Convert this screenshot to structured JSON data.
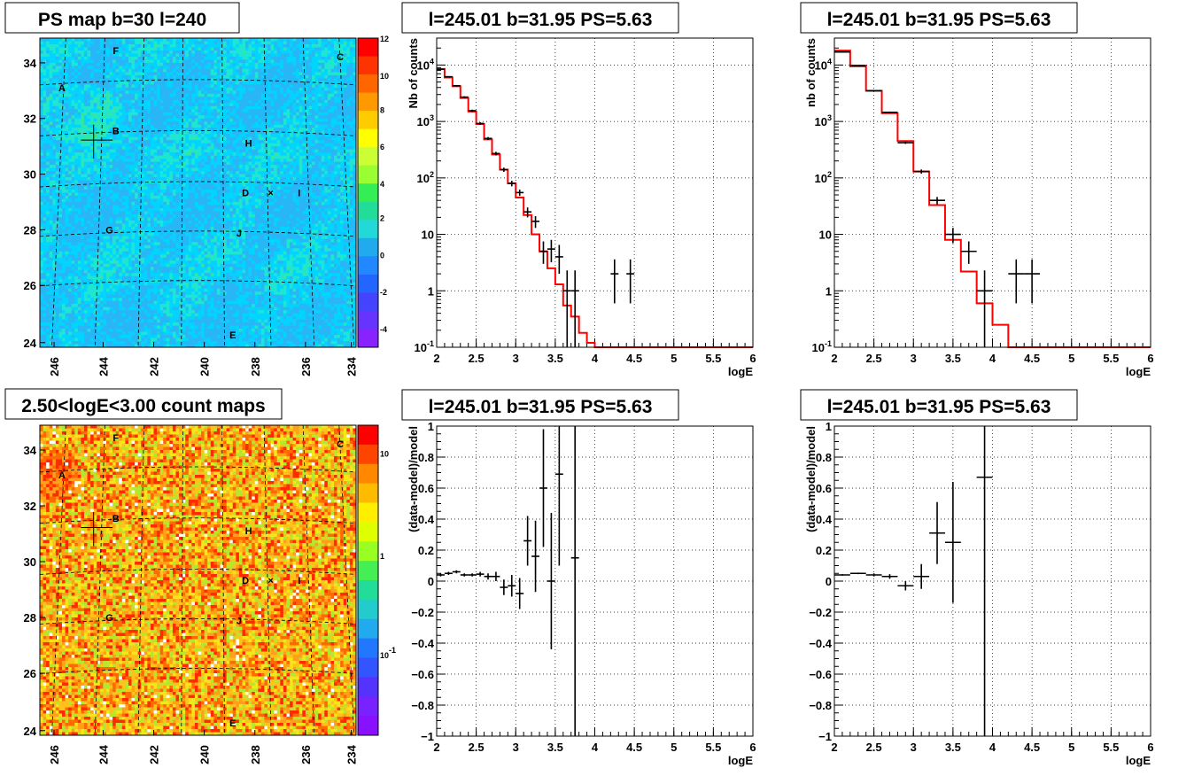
{
  "colors": {
    "model": "#ff0000",
    "data": "#000000",
    "grid": "#000000"
  },
  "maps": [
    {
      "title": "PS map b=30 l=240",
      "x_ticks": [
        "246",
        "244",
        "242",
        "240",
        "238",
        "236",
        "234"
      ],
      "y_ticks": [
        "24",
        "26",
        "28",
        "30",
        "32",
        "34"
      ],
      "z_ticks": [
        "12",
        "10",
        "8",
        "6",
        "4",
        "2",
        "0",
        "-2",
        "-4"
      ],
      "z_range": [
        -5,
        12
      ],
      "palette": "rainbow-violet-to-red, mostly cyan/green",
      "markers": [
        "A",
        "B",
        "C",
        "D",
        "E",
        "F",
        "G",
        "H",
        "I",
        "J"
      ]
    },
    {
      "title": "2.50<logE<3.00 count maps",
      "x_ticks": [
        "246",
        "244",
        "242",
        "240",
        "238",
        "236",
        "234"
      ],
      "y_ticks": [
        "24",
        "26",
        "28",
        "30",
        "32",
        "34"
      ],
      "z_ticks": [
        "10",
        "1",
        "10^{-1}"
      ],
      "z_scale": "log",
      "palette": "rainbow, mostly yellow/orange",
      "markers": [
        "A",
        "B",
        "C",
        "D",
        "E",
        "F",
        "G",
        "H",
        "I",
        "J"
      ]
    }
  ],
  "chart_data": [
    {
      "type": "line",
      "title": "l=245.01 b=31.95 PS=5.63",
      "xlabel": "logE",
      "ylabel": "Nb of counts",
      "yscale": "log",
      "xlim": [
        2,
        6
      ],
      "ylim": [
        0.1,
        30000
      ],
      "grid": true,
      "x_ticks": [
        "2",
        "2.5",
        "3",
        "3.5",
        "4",
        "4.5",
        "5",
        "5.5",
        "6"
      ],
      "y_ticks": [
        "10^{-1}",
        "1",
        "10",
        "10^{2}",
        "10^{3}",
        "10^{4}"
      ],
      "model_step": {
        "edges": [
          2.0,
          2.1,
          2.2,
          2.3,
          2.4,
          2.5,
          2.6,
          2.7,
          2.8,
          2.9,
          3.0,
          3.1,
          3.2,
          3.3,
          3.4,
          3.5,
          3.6,
          3.7,
          3.8,
          3.9,
          4.0,
          6.0
        ],
        "values": [
          8500,
          6000,
          4200,
          2600,
          1500,
          900,
          480,
          260,
          140,
          80,
          45,
          22,
          10,
          5,
          2.5,
          1.3,
          0.55,
          0.35,
          0.18,
          0.12,
          0.1
        ]
      },
      "data_points": [
        {
          "x": 2.05,
          "y": 8400,
          "lo": 8200,
          "hi": 8600
        },
        {
          "x": 2.15,
          "y": 6200,
          "lo": 6050,
          "hi": 6350
        },
        {
          "x": 2.25,
          "y": 4300,
          "lo": 4180,
          "hi": 4420
        },
        {
          "x": 2.35,
          "y": 2700,
          "lo": 2600,
          "hi": 2800
        },
        {
          "x": 2.45,
          "y": 1550,
          "lo": 1480,
          "hi": 1620
        },
        {
          "x": 2.55,
          "y": 920,
          "lo": 870,
          "hi": 970
        },
        {
          "x": 2.65,
          "y": 500,
          "lo": 470,
          "hi": 530
        },
        {
          "x": 2.75,
          "y": 270,
          "lo": 250,
          "hi": 290
        },
        {
          "x": 2.85,
          "y": 140,
          "lo": 128,
          "hi": 152
        },
        {
          "x": 2.95,
          "y": 80,
          "lo": 71,
          "hi": 89
        },
        {
          "x": 3.05,
          "y": 55,
          "lo": 48,
          "hi": 62
        },
        {
          "x": 3.15,
          "y": 25,
          "lo": 20,
          "hi": 30
        },
        {
          "x": 3.25,
          "y": 17,
          "lo": 13,
          "hi": 21
        },
        {
          "x": 3.35,
          "y": 5,
          "lo": 3,
          "hi": 7.5
        },
        {
          "x": 3.45,
          "y": 5.5,
          "lo": 3.2,
          "hi": 8
        },
        {
          "x": 3.55,
          "y": 4,
          "lo": 2,
          "hi": 6.5
        },
        {
          "x": 3.65,
          "y": 1,
          "lo": 0.1,
          "hi": 2.3
        },
        {
          "x": 3.75,
          "y": 1,
          "lo": 0.1,
          "hi": 2.3
        },
        {
          "x": 4.25,
          "y": 2,
          "lo": 0.6,
          "hi": 3.6
        },
        {
          "x": 4.45,
          "y": 2,
          "lo": 0.6,
          "hi": 3.6
        }
      ]
    },
    {
      "type": "line",
      "title": "l=245.01 b=31.95 PS=5.63",
      "xlabel": "logE",
      "ylabel": "nb of counts",
      "yscale": "log",
      "xlim": [
        2,
        6
      ],
      "ylim": [
        0.1,
        30000
      ],
      "grid": true,
      "x_ticks": [
        "2",
        "2.5",
        "3",
        "3.5",
        "4",
        "4.5",
        "5",
        "5.5",
        "6"
      ],
      "y_ticks": [
        "10^{-1}",
        "1",
        "10",
        "10^{2}",
        "10^{3}",
        "10^{4}"
      ],
      "model_step": {
        "edges": [
          2.0,
          2.2,
          2.4,
          2.6,
          2.8,
          3.0,
          3.2,
          3.4,
          3.6,
          3.8,
          4.0,
          4.2,
          6.0
        ],
        "values": [
          18000,
          9500,
          3500,
          1400,
          450,
          130,
          33,
          8,
          2.2,
          0.6,
          0.25,
          0.1
        ]
      },
      "data_points": [
        {
          "x": 2.1,
          "y": 17000,
          "lo": 16700,
          "hi": 17300
        },
        {
          "x": 2.3,
          "y": 9800,
          "lo": 9600,
          "hi": 10000
        },
        {
          "x": 2.5,
          "y": 3500,
          "lo": 3400,
          "hi": 3600
        },
        {
          "x": 2.7,
          "y": 1450,
          "lo": 1400,
          "hi": 1500
        },
        {
          "x": 2.9,
          "y": 420,
          "lo": 400,
          "hi": 440
        },
        {
          "x": 3.1,
          "y": 130,
          "lo": 119,
          "hi": 141
        },
        {
          "x": 3.3,
          "y": 40,
          "lo": 34,
          "hi": 46
        },
        {
          "x": 3.5,
          "y": 10,
          "lo": 7,
          "hi": 13
        },
        {
          "x": 3.7,
          "y": 5,
          "lo": 3,
          "hi": 7.5
        },
        {
          "x": 3.9,
          "y": 1,
          "lo": 0.1,
          "hi": 2.3
        },
        {
          "x": 4.3,
          "y": 2,
          "lo": 0.6,
          "hi": 3.6
        },
        {
          "x": 4.5,
          "y": 2,
          "lo": 0.6,
          "hi": 3.6
        }
      ]
    },
    {
      "type": "scatter",
      "title": "l=245.01 b=31.95 PS=5.63",
      "xlabel": "logE",
      "ylabel": "(data-model)/model",
      "xlim": [
        2,
        6
      ],
      "ylim": [
        -1,
        1
      ],
      "grid": true,
      "x_ticks": [
        "2",
        "2.5",
        "3",
        "3.5",
        "4",
        "4.5",
        "5",
        "5.5",
        "6"
      ],
      "y_ticks": [
        "-1",
        "-0.8",
        "-0.6",
        "-0.4",
        "-0.2",
        "0",
        "0.2",
        "0.4",
        "0.6",
        "0.8",
        "1"
      ],
      "data_points": [
        {
          "x": 2.05,
          "y": 0.04,
          "lo": 0.03,
          "hi": 0.05
        },
        {
          "x": 2.15,
          "y": 0.05,
          "lo": 0.04,
          "hi": 0.06
        },
        {
          "x": 2.25,
          "y": 0.06,
          "lo": 0.05,
          "hi": 0.07
        },
        {
          "x": 2.35,
          "y": 0.04,
          "lo": 0.03,
          "hi": 0.05
        },
        {
          "x": 2.45,
          "y": 0.04,
          "lo": 0.03,
          "hi": 0.05
        },
        {
          "x": 2.55,
          "y": 0.045,
          "lo": 0.03,
          "hi": 0.06
        },
        {
          "x": 2.65,
          "y": 0.03,
          "lo": 0.01,
          "hi": 0.05
        },
        {
          "x": 2.75,
          "y": 0.03,
          "lo": 0.0,
          "hi": 0.06
        },
        {
          "x": 2.85,
          "y": -0.04,
          "lo": -0.09,
          "hi": 0.01
        },
        {
          "x": 2.95,
          "y": -0.03,
          "lo": -0.1,
          "hi": 0.04
        },
        {
          "x": 3.05,
          "y": -0.08,
          "lo": -0.18,
          "hi": 0.02
        },
        {
          "x": 3.15,
          "y": 0.26,
          "lo": 0.1,
          "hi": 0.42
        },
        {
          "x": 3.25,
          "y": 0.16,
          "lo": -0.07,
          "hi": 0.39
        },
        {
          "x": 3.35,
          "y": 0.6,
          "lo": 0.22,
          "hi": 0.98
        },
        {
          "x": 3.45,
          "y": 0.0,
          "lo": -0.44,
          "hi": 0.44
        },
        {
          "x": 3.55,
          "y": 0.69,
          "lo": 0.1,
          "hi": 1.0
        },
        {
          "x": 3.75,
          "y": 0.15,
          "lo": -1.0,
          "hi": 1.0
        }
      ]
    },
    {
      "type": "scatter",
      "title": "l=245.01 b=31.95 PS=5.63",
      "xlabel": "logE",
      "ylabel": "(data-model)/model",
      "xlim": [
        2,
        6
      ],
      "ylim": [
        -1,
        1
      ],
      "grid": true,
      "x_ticks": [
        "2",
        "2.5",
        "3",
        "3.5",
        "4",
        "4.5",
        "5",
        "5.5",
        "6"
      ],
      "y_ticks": [
        "-1",
        "-0.8",
        "-0.6",
        "-0.4",
        "-0.2",
        "0",
        "0.2",
        "0.4",
        "0.6",
        "0.8",
        "1"
      ],
      "data_points": [
        {
          "x": 2.1,
          "y": 0.04,
          "lo": 0.035,
          "hi": 0.045
        },
        {
          "x": 2.3,
          "y": 0.05,
          "lo": 0.045,
          "hi": 0.055
        },
        {
          "x": 2.5,
          "y": 0.04,
          "lo": 0.03,
          "hi": 0.05
        },
        {
          "x": 2.7,
          "y": 0.03,
          "lo": 0.015,
          "hi": 0.045
        },
        {
          "x": 2.9,
          "y": -0.03,
          "lo": -0.06,
          "hi": 0.0
        },
        {
          "x": 3.1,
          "y": 0.03,
          "lo": -0.05,
          "hi": 0.11
        },
        {
          "x": 3.3,
          "y": 0.31,
          "lo": 0.11,
          "hi": 0.51
        },
        {
          "x": 3.5,
          "y": 0.25,
          "lo": -0.14,
          "hi": 0.64
        },
        {
          "x": 3.9,
          "y": 0.67,
          "lo": -1.0,
          "hi": 1.0
        }
      ]
    }
  ]
}
